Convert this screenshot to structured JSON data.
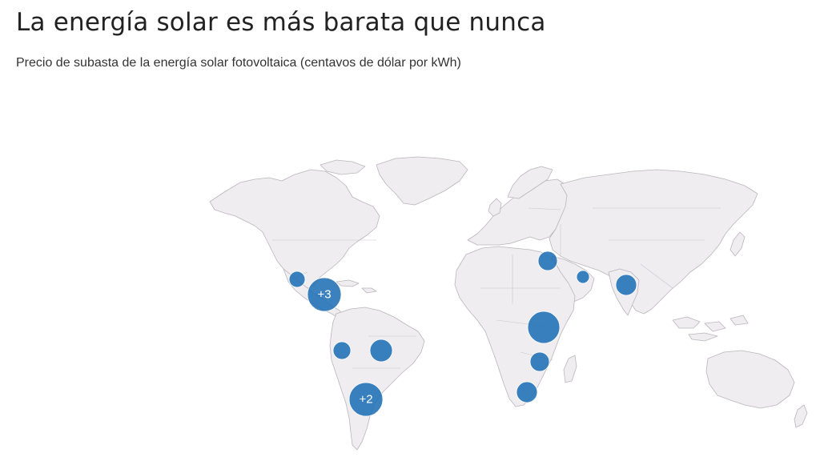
{
  "header": {
    "title": "La energía solar es más barata que nunca",
    "subtitle": "Precio de subasta de la energía solar fotovoltaica (centavos de dólar por kWh)"
  },
  "map": {
    "land_color": "#efedf0",
    "border_color": "#b9b6ba",
    "bubble_color": "#1f6fb5",
    "bubbles": [
      {
        "id": "mexico-west",
        "label": "",
        "size": "small"
      },
      {
        "id": "central-america",
        "label": "+3",
        "size": "large"
      },
      {
        "id": "peru",
        "label": "",
        "size": "small"
      },
      {
        "id": "brazil",
        "label": "",
        "size": "medium"
      },
      {
        "id": "argentina-chile",
        "label": "+2",
        "size": "large"
      },
      {
        "id": "egypt",
        "label": "",
        "size": "small"
      },
      {
        "id": "uae",
        "label": "",
        "size": "xsmall"
      },
      {
        "id": "india",
        "label": "",
        "size": "medium"
      },
      {
        "id": "east-africa",
        "label": "",
        "size": "large"
      },
      {
        "id": "zambia",
        "label": "",
        "size": "small"
      },
      {
        "id": "south-africa",
        "label": "",
        "size": "small"
      }
    ]
  }
}
